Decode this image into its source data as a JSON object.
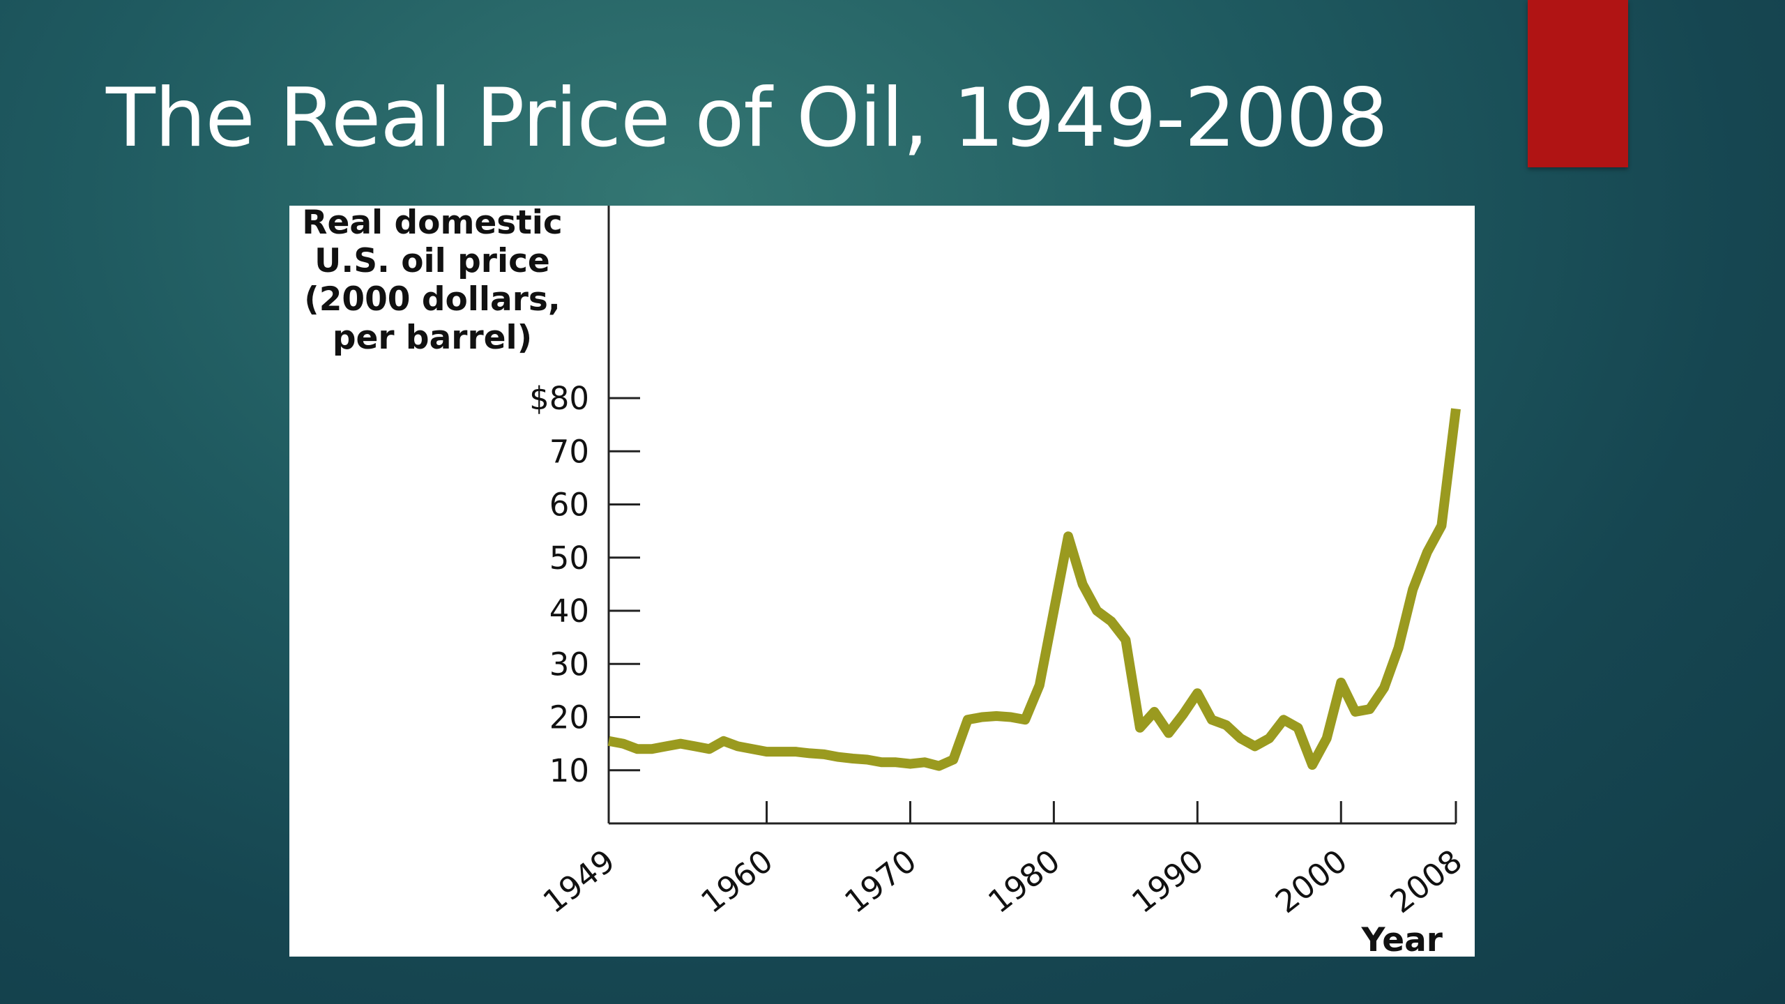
{
  "slide": {
    "title": "The Real Price of Oil, 1949-2008",
    "accent_color": "#b01414"
  },
  "chart_data": {
    "type": "line",
    "title": "",
    "ylabel_lines": [
      "Real domestic",
      "U.S. oil price",
      "(2000 dollars,",
      "per barrel)"
    ],
    "xlabel": "Year",
    "xlim": [
      1949,
      2008
    ],
    "ylim": [
      0,
      80
    ],
    "x_ticks": [
      1949,
      1960,
      1970,
      1980,
      1990,
      2000,
      2008
    ],
    "x_tick_labels": [
      "1949",
      "1960",
      "1970",
      "1980",
      "1990",
      "2000",
      "2008"
    ],
    "y_ticks": [
      10,
      20,
      30,
      40,
      50,
      60,
      70,
      80
    ],
    "y_tick_labels": [
      "10",
      "20",
      "30",
      "40",
      "50",
      "60",
      "70",
      "$80"
    ],
    "grid": false,
    "line_color": "#9a9a1f",
    "series": [
      {
        "x": [
          1949,
          1950,
          1951,
          1952,
          1953,
          1954,
          1955,
          1956,
          1957,
          1958,
          1959,
          1960,
          1961,
          1962,
          1963,
          1964,
          1965,
          1966,
          1967,
          1968,
          1969,
          1970,
          1971,
          1972,
          1973,
          1974,
          1975,
          1976,
          1977,
          1978,
          1979,
          1980,
          1981,
          1982,
          1983,
          1984,
          1985,
          1986,
          1987,
          1988,
          1989,
          1990,
          1991,
          1992,
          1993,
          1994,
          1995,
          1996,
          1997,
          1998,
          1999,
          2000,
          2001,
          2002,
          2003,
          2004,
          2005,
          2006,
          2007,
          2008
        ],
        "y": [
          15.5,
          15,
          14,
          14,
          14.5,
          15,
          14.5,
          14,
          15.5,
          14.5,
          14,
          13.5,
          13.5,
          13.5,
          13.2,
          13,
          12.5,
          12.2,
          12,
          11.5,
          11.5,
          11.2,
          11.5,
          10.8,
          12,
          19.5,
          20,
          20.2,
          20,
          19.5,
          26,
          40,
          54,
          45,
          40,
          38,
          34.5,
          18,
          21,
          17,
          20.5,
          24.5,
          19.5,
          18.5,
          16,
          14.5,
          16,
          19.5,
          18,
          11,
          16,
          26.5,
          21,
          21.5,
          25.5,
          33,
          44,
          51,
          56,
          78
        ]
      }
    ]
  }
}
